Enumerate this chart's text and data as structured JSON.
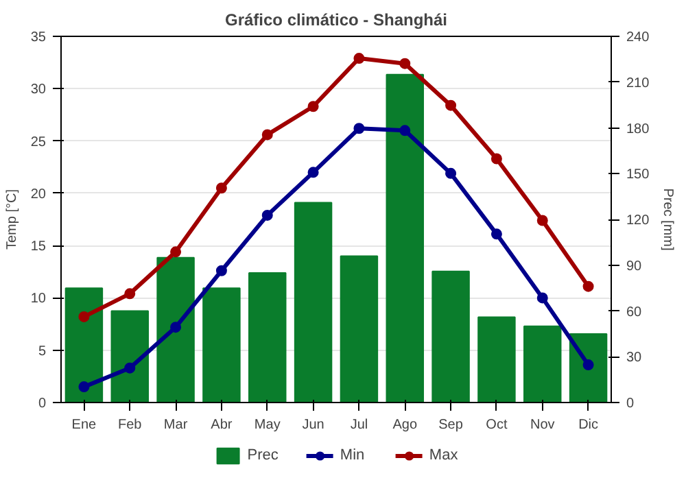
{
  "chart_data": {
    "type": "bar",
    "title": "Gráfico climático - Shanghái",
    "ylabel": "Temp [°C]",
    "y2label": "Prec [mm]",
    "categories": [
      "Ene",
      "Feb",
      "Mar",
      "Abr",
      "May",
      "Jun",
      "Jul",
      "Ago",
      "Sep",
      "Oct",
      "Nov",
      "Dic"
    ],
    "series": [
      {
        "name": "Prec",
        "axis": "y2",
        "color": "#0a7d2c",
        "values": [
          75,
          60,
          95,
          75,
          85,
          131,
          96,
          215,
          86,
          56,
          50,
          45
        ]
      },
      {
        "name": "Min",
        "type": "line",
        "color": "#00008b",
        "marker": "circle",
        "values": [
          1.5,
          3.3,
          7.2,
          12.6,
          17.9,
          22,
          26.2,
          26,
          21.9,
          16.1,
          10,
          3.6
        ]
      },
      {
        "name": "Max",
        "type": "line",
        "color": "#a00000",
        "marker": "circle",
        "values": [
          8.2,
          10.4,
          14.4,
          20.5,
          25.6,
          28.3,
          32.9,
          32.4,
          28.4,
          23.3,
          17.4,
          11.1
        ]
      }
    ],
    "ylim": [
      0,
      35
    ],
    "yticks": [
      0,
      5,
      10,
      15,
      20,
      25,
      30,
      35
    ],
    "y2lim": [
      0,
      240
    ],
    "y2ticks": [
      0,
      30,
      60,
      90,
      120,
      150,
      180,
      210,
      240
    ],
    "grid": "y",
    "legend": "bottom"
  }
}
